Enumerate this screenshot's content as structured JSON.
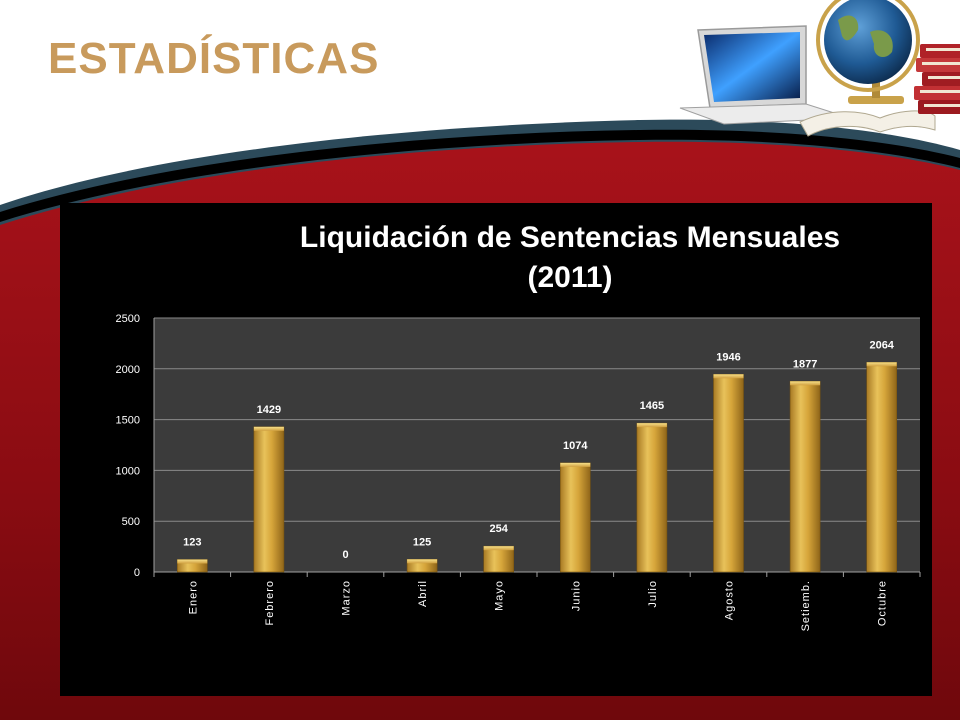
{
  "slide": {
    "title": "ESTADÍSTICAS"
  },
  "colors": {
    "title": "#c89a5c",
    "bar": "#d6a53a",
    "background_red": "#8e0e14",
    "chart_background": "#000000",
    "plot_area": "#3b3b3b",
    "band_dark": "#2c4a5a"
  },
  "decorations": [
    "laptop-icon",
    "globe-icon",
    "books-icon",
    "open-book-icon"
  ],
  "chart_data": {
    "type": "bar",
    "title_lines": [
      "Liquidación de Sentencias Mensuales",
      "(2011)"
    ],
    "categories": [
      "Enero",
      "Febrero",
      "Marzo",
      "Abril",
      "Mayo",
      "Junio",
      "Julio",
      "Agosto",
      "Setiemb.",
      "Octubre"
    ],
    "values": [
      123,
      1429,
      0,
      125,
      254,
      1074,
      1465,
      1946,
      1877,
      2064
    ],
    "data_labels": [
      "123",
      "1429",
      "0",
      "125",
      "254",
      "1074",
      "1465",
      "1946",
      "1877",
      "2064"
    ],
    "ylim": [
      0,
      2500
    ],
    "yticks": [
      0,
      500,
      1000,
      1500,
      2000,
      2500
    ],
    "ytick_labels": [
      "0",
      "500",
      "1000",
      "1500",
      "2000",
      "2500"
    ],
    "xlabel": "",
    "ylabel": "",
    "grid": true,
    "legend": "none"
  }
}
